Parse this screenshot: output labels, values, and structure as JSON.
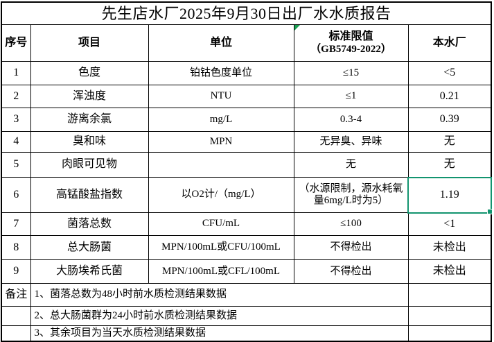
{
  "title": "先生店水厂2025年9月30日出厂水水质报告",
  "colors": {
    "selection_border": "#12946F",
    "error_indicator": "#1AA053",
    "grid_line": "#000000"
  },
  "icons": {
    "error_indicator": "green-corner-triangle",
    "fill_handle": "selection-fill-handle"
  },
  "table": {
    "headers": {
      "no": "序号",
      "item": "项目",
      "unit": "单位",
      "standard_l1": "标准限值",
      "standard_l2": "（GB5749-2022）",
      "plant": "本水厂"
    },
    "rows": [
      {
        "no": "1",
        "item": "色度",
        "unit": "铂钴色度单位",
        "standard": "≤15",
        "plant": "<5"
      },
      {
        "no": "2",
        "item": "浑浊度",
        "unit": "NTU",
        "standard": "≤1",
        "plant": "0.21"
      },
      {
        "no": "3",
        "item": "游离余氯",
        "unit": "mg/L",
        "standard": "0.3-4",
        "plant": "0.39"
      },
      {
        "no": "4",
        "item": "臭和味",
        "unit": "MPN",
        "standard": "无异臭、异味",
        "plant": "无"
      },
      {
        "no": "5",
        "item": "肉眼可见物",
        "unit": "",
        "standard": "无",
        "plant": "无"
      },
      {
        "no": "6",
        "item": "高锰酸盐指数",
        "unit": "以O2计/（mg/L）",
        "standard": "（水源限制，源水耗氧量6mg/L时为5）",
        "plant": "1.19"
      },
      {
        "no": "7",
        "item": "菌落总数",
        "unit": "CFU/mL",
        "standard": "≤100",
        "plant": "<1"
      },
      {
        "no": "8",
        "item": "总大肠菌",
        "unit": "MPN/100mL或CFU/100mL",
        "standard": "不得检出",
        "plant": "未检出"
      },
      {
        "no": "9",
        "item": "大肠埃希氏菌",
        "unit": "MPN/100mL或CFL/100mL",
        "standard": "不得检出",
        "plant": "未检出"
      }
    ],
    "remarks": {
      "label": "备注",
      "items": [
        "1、菌落总数为48小时前水质检测结果数据",
        "2、总大肠菌群为24小时前水质检测结果数据",
        "3、其余项目为当天水质检测结果数据"
      ]
    }
  }
}
